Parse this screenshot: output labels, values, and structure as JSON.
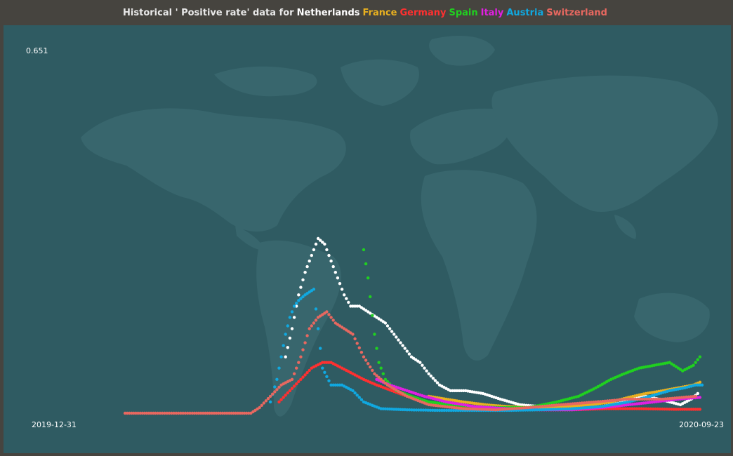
{
  "header": {
    "title_prefix": "Historical ' Positive rate' data for",
    "countries": [
      {
        "name": "Netherlands",
        "color": "#ffffff"
      },
      {
        "name": "France",
        "color": "#e8b020"
      },
      {
        "name": "Germany",
        "color": "#ff3030"
      },
      {
        "name": "Spain",
        "color": "#20d020"
      },
      {
        "name": "Italy",
        "color": "#e020e0"
      },
      {
        "name": "Austria",
        "color": "#10a8e0"
      },
      {
        "name": "Switzerland",
        "color": "#e86860"
      }
    ]
  },
  "chart_data": {
    "type": "scatter",
    "title": "Historical ' Positive rate' data for Netherlands France Germany Spain Italy Austria Switzerland",
    "x_start": "2019-12-31",
    "x_end": "2020-09-23",
    "x_start_label": "2019-12-31",
    "x_end_label": "2020-09-23",
    "ymin": 0,
    "ymax": 0.651,
    "ymax_label": "0.651",
    "grid": false,
    "background": "world-map",
    "series": [
      {
        "name": "Netherlands",
        "color": "#ffffff",
        "points": [
          [
            "2020-03-15",
            0.1
          ],
          [
            "2020-03-18",
            0.15
          ],
          [
            "2020-03-21",
            0.21
          ],
          [
            "2020-03-24",
            0.25
          ],
          [
            "2020-03-27",
            0.28
          ],
          [
            "2020-03-30",
            0.31
          ],
          [
            "2020-04-02",
            0.3
          ],
          [
            "2020-04-05",
            0.27
          ],
          [
            "2020-04-08",
            0.24
          ],
          [
            "2020-04-11",
            0.21
          ],
          [
            "2020-04-14",
            0.19
          ],
          [
            "2020-04-18",
            0.19
          ],
          [
            "2020-04-22",
            0.18
          ],
          [
            "2020-04-26",
            0.17
          ],
          [
            "2020-04-30",
            0.16
          ],
          [
            "2020-05-04",
            0.14
          ],
          [
            "2020-05-08",
            0.12
          ],
          [
            "2020-05-12",
            0.1
          ],
          [
            "2020-05-16",
            0.09
          ],
          [
            "2020-05-20",
            0.07
          ],
          [
            "2020-05-25",
            0.05
          ],
          [
            "2020-05-30",
            0.04
          ],
          [
            "2020-06-06",
            0.04
          ],
          [
            "2020-06-14",
            0.035
          ],
          [
            "2020-06-22",
            0.025
          ],
          [
            "2020-07-01",
            0.015
          ],
          [
            "2020-07-10",
            0.012
          ],
          [
            "2020-07-20",
            0.01
          ],
          [
            "2020-07-30",
            0.008
          ],
          [
            "2020-08-08",
            0.012
          ],
          [
            "2020-08-16",
            0.018
          ],
          [
            "2020-08-22",
            0.025
          ],
          [
            "2020-08-28",
            0.03
          ],
          [
            "2020-09-03",
            0.025
          ],
          [
            "2020-09-08",
            0.02
          ],
          [
            "2020-09-13",
            0.015
          ],
          [
            "2020-09-18",
            0.025
          ],
          [
            "2020-09-21",
            0.035
          ]
        ]
      },
      {
        "name": "France",
        "color": "#e8b020",
        "points": [
          [
            "2020-05-20",
            0.03
          ],
          [
            "2020-05-28",
            0.025
          ],
          [
            "2020-06-05",
            0.02
          ],
          [
            "2020-06-15",
            0.015
          ],
          [
            "2020-06-25",
            0.012
          ],
          [
            "2020-07-05",
            0.01
          ],
          [
            "2020-07-15",
            0.01
          ],
          [
            "2020-07-25",
            0.012
          ],
          [
            "2020-08-03",
            0.015
          ],
          [
            "2020-08-12",
            0.02
          ],
          [
            "2020-08-20",
            0.028
          ],
          [
            "2020-08-28",
            0.035
          ],
          [
            "2020-09-05",
            0.04
          ],
          [
            "2020-09-12",
            0.045
          ],
          [
            "2020-09-19",
            0.05
          ],
          [
            "2020-09-22",
            0.055
          ]
        ]
      },
      {
        "name": "Germany",
        "color": "#ff3030",
        "points": [
          [
            "2020-03-12",
            0.02
          ],
          [
            "2020-03-17",
            0.04
          ],
          [
            "2020-03-22",
            0.06
          ],
          [
            "2020-03-27",
            0.08
          ],
          [
            "2020-04-01",
            0.09
          ],
          [
            "2020-04-05",
            0.09
          ],
          [
            "2020-04-10",
            0.08
          ],
          [
            "2020-04-15",
            0.07
          ],
          [
            "2020-04-20",
            0.06
          ],
          [
            "2020-04-26",
            0.05
          ],
          [
            "2020-05-03",
            0.04
          ],
          [
            "2020-05-10",
            0.03
          ],
          [
            "2020-05-18",
            0.02
          ],
          [
            "2020-05-28",
            0.012
          ],
          [
            "2020-06-10",
            0.008
          ],
          [
            "2020-06-25",
            0.006
          ],
          [
            "2020-07-10",
            0.006
          ],
          [
            "2020-07-25",
            0.006
          ],
          [
            "2020-08-10",
            0.008
          ],
          [
            "2020-08-25",
            0.008
          ],
          [
            "2020-09-10",
            0.007
          ],
          [
            "2020-09-22",
            0.007
          ]
        ]
      },
      {
        "name": "Spain",
        "color": "#20d020",
        "points": [
          [
            "2020-04-20",
            0.29
          ],
          [
            "2020-04-22",
            0.24
          ],
          [
            "2020-04-25",
            0.14
          ],
          [
            "2020-04-27",
            0.09
          ],
          [
            "2020-04-30",
            0.06
          ],
          [
            "2020-05-05",
            0.04
          ],
          [
            "2020-05-12",
            0.03
          ],
          [
            "2020-05-20",
            0.02
          ],
          [
            "2020-05-30",
            0.015
          ],
          [
            "2020-06-10",
            0.012
          ],
          [
            "2020-06-22",
            0.01
          ],
          [
            "2020-07-05",
            0.01
          ],
          [
            "2020-07-18",
            0.02
          ],
          [
            "2020-07-28",
            0.03
          ],
          [
            "2020-08-05",
            0.045
          ],
          [
            "2020-08-12",
            0.06
          ],
          [
            "2020-08-18",
            0.07
          ],
          [
            "2020-08-25",
            0.08
          ],
          [
            "2020-09-01",
            0.085
          ],
          [
            "2020-09-08",
            0.09
          ],
          [
            "2020-09-14",
            0.075
          ],
          [
            "2020-09-19",
            0.085
          ],
          [
            "2020-09-22",
            0.1
          ]
        ]
      },
      {
        "name": "Italy",
        "color": "#e020e0",
        "points": [
          [
            "2020-04-26",
            0.06
          ],
          [
            "2020-05-02",
            0.05
          ],
          [
            "2020-05-10",
            0.04
          ],
          [
            "2020-05-18",
            0.03
          ],
          [
            "2020-05-28",
            0.02
          ],
          [
            "2020-06-10",
            0.012
          ],
          [
            "2020-06-25",
            0.008
          ],
          [
            "2020-07-10",
            0.006
          ],
          [
            "2020-07-25",
            0.006
          ],
          [
            "2020-08-08",
            0.01
          ],
          [
            "2020-08-20",
            0.015
          ],
          [
            "2020-09-01",
            0.02
          ],
          [
            "2020-09-12",
            0.025
          ],
          [
            "2020-09-22",
            0.028
          ]
        ]
      },
      {
        "name": "Austria",
        "color": "#10a8e0",
        "points": [
          [
            "2020-03-08",
            0.02
          ],
          [
            "2020-03-11",
            0.06
          ],
          [
            "2020-03-13",
            0.1
          ],
          [
            "2020-03-15",
            0.14
          ],
          [
            "2020-03-17",
            0.17
          ],
          [
            "2020-03-19",
            0.19
          ],
          [
            "2020-03-21",
            0.2
          ],
          [
            "2020-03-24",
            0.21
          ],
          [
            "2020-03-28",
            0.22
          ],
          [
            "2020-04-01",
            0.08
          ],
          [
            "2020-04-05",
            0.05
          ],
          [
            "2020-04-10",
            0.05
          ],
          [
            "2020-04-15",
            0.04
          ],
          [
            "2020-04-20",
            0.02
          ],
          [
            "2020-04-28",
            0.008
          ],
          [
            "2020-05-10",
            0.006
          ],
          [
            "2020-05-25",
            0.005
          ],
          [
            "2020-06-10",
            0.005
          ],
          [
            "2020-06-25",
            0.005
          ],
          [
            "2020-07-10",
            0.006
          ],
          [
            "2020-07-25",
            0.008
          ],
          [
            "2020-08-08",
            0.012
          ],
          [
            "2020-08-20",
            0.02
          ],
          [
            "2020-08-30",
            0.03
          ],
          [
            "2020-09-08",
            0.04
          ],
          [
            "2020-09-15",
            0.045
          ],
          [
            "2020-09-20",
            0.05
          ],
          [
            "2020-09-23",
            0.05
          ]
        ]
      },
      {
        "name": "Switzerland",
        "color": "#e86860",
        "points": [
          [
            "2020-01-01",
            0.0
          ],
          [
            "2020-01-15",
            0.0
          ],
          [
            "2020-02-01",
            0.0
          ],
          [
            "2020-02-15",
            0.0
          ],
          [
            "2020-02-28",
            0.0
          ],
          [
            "2020-03-03",
            0.01
          ],
          [
            "2020-03-08",
            0.03
          ],
          [
            "2020-03-13",
            0.05
          ],
          [
            "2020-03-18",
            0.06
          ],
          [
            "2020-03-22",
            0.1
          ],
          [
            "2020-03-26",
            0.15
          ],
          [
            "2020-03-30",
            0.17
          ],
          [
            "2020-04-03",
            0.18
          ],
          [
            "2020-04-07",
            0.16
          ],
          [
            "2020-04-11",
            0.15
          ],
          [
            "2020-04-15",
            0.14
          ],
          [
            "2020-04-20",
            0.1
          ],
          [
            "2020-04-25",
            0.07
          ],
          [
            "2020-05-01",
            0.05
          ],
          [
            "2020-05-10",
            0.03
          ],
          [
            "2020-05-20",
            0.015
          ],
          [
            "2020-06-05",
            0.008
          ],
          [
            "2020-06-20",
            0.006
          ],
          [
            "2020-07-05",
            0.01
          ],
          [
            "2020-07-20",
            0.015
          ],
          [
            "2020-08-05",
            0.02
          ],
          [
            "2020-08-20",
            0.025
          ],
          [
            "2020-09-05",
            0.025
          ],
          [
            "2020-09-20",
            0.03
          ]
        ]
      }
    ]
  }
}
